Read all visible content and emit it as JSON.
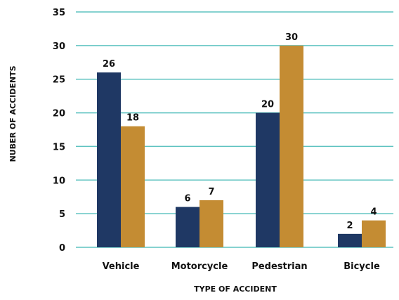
{
  "chart_data": {
    "type": "bar",
    "title": "",
    "xlabel": "TYPE OF ACCIDENT",
    "ylabel": "NUBER OF ACCIDENTS",
    "categories": [
      "Vehicle",
      "Motorcycle",
      "Pedestrian",
      "Bicycle"
    ],
    "series": [
      {
        "values": [
          26,
          6,
          20,
          2
        ],
        "color": "#1f3864"
      },
      {
        "values": [
          18,
          7,
          30,
          4
        ],
        "color": "#c48c33"
      }
    ],
    "ylim": [
      0,
      35
    ],
    "yticks": [
      0,
      5,
      10,
      15,
      20,
      25,
      30,
      35
    ],
    "grid": true,
    "legend": "none",
    "gridline_color": "#5ec3c0"
  }
}
